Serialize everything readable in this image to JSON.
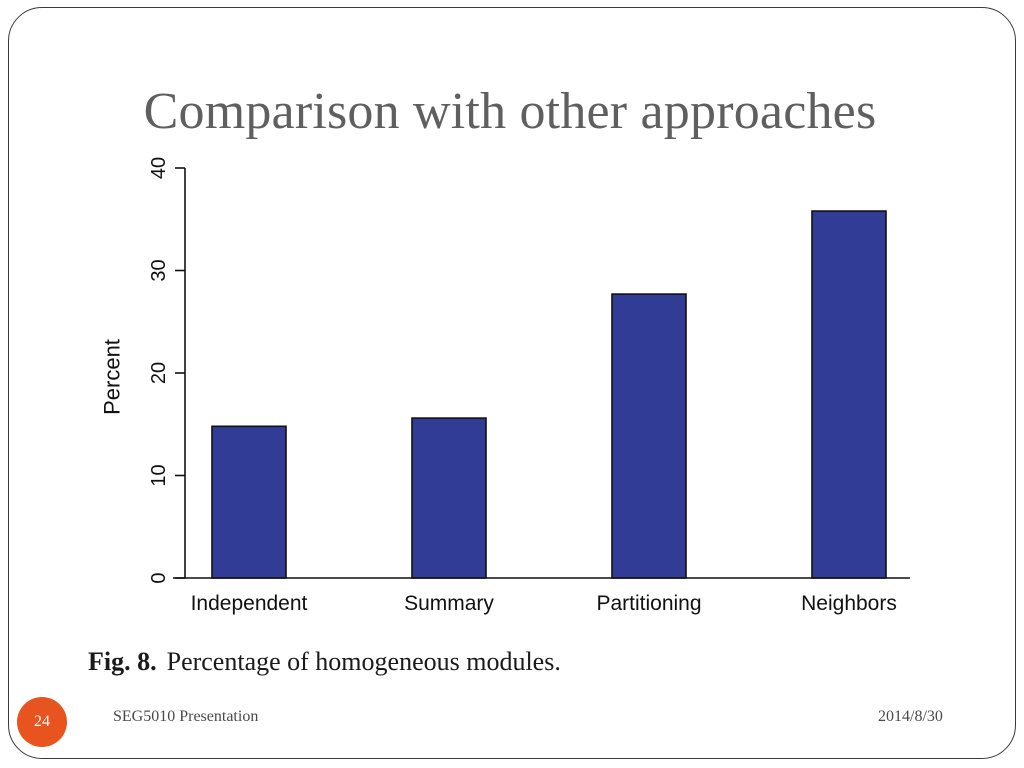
{
  "slide": {
    "title": "Comparison with other approaches",
    "caption_label": "Fig. 8.",
    "caption_text": "Percentage of homogeneous modules.",
    "number": "24",
    "footer_left": "SEG5010 Presentation",
    "footer_right": "2014/8/30",
    "accent_color": "#e8541f"
  },
  "chart_data": {
    "type": "bar",
    "title": "",
    "categories": [
      "Independent",
      "Summary",
      "Partitioning",
      "Neighbors"
    ],
    "values": [
      14.8,
      15.6,
      27.7,
      35.8
    ],
    "xlabel": "",
    "ylabel": "Percent",
    "ylim": [
      0,
      40
    ],
    "yticks": [
      0,
      10,
      20,
      30,
      40
    ],
    "bar_color": "#313c96",
    "grid": false,
    "legend": "none"
  }
}
